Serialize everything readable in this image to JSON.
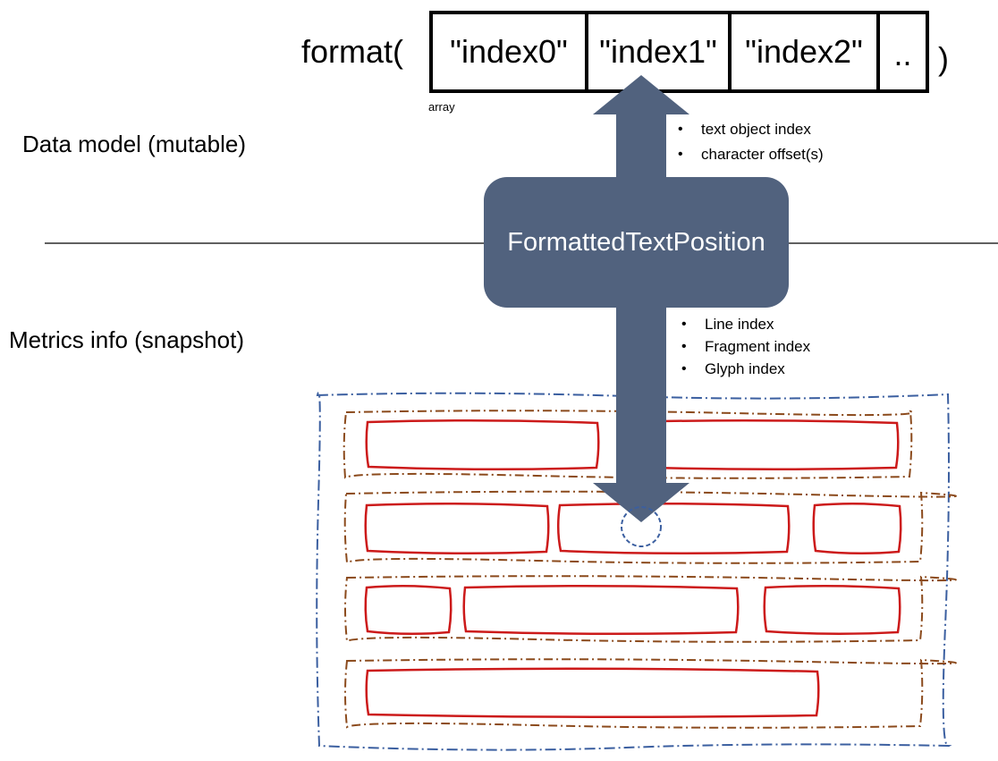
{
  "format_call": {
    "open": "format(",
    "close": ")",
    "cells": [
      "\"index0\"",
      "\"index1\"",
      "\"index2\"",
      ".."
    ],
    "array_caption": "array"
  },
  "data_model_label": "Data model (mutable)",
  "metrics_label": "Metrics info (snapshot)",
  "position_box_label": "FormattedTextPosition",
  "data_model_bullets": [
    "text object index",
    "character offset(s)"
  ],
  "metrics_bullets": [
    "Line index",
    "Fragment index",
    "Glyph index"
  ],
  "colors": {
    "arrow": "#51627e",
    "frame_outer": "#3b5fa0",
    "line_dashed": "#8b4a1c",
    "fragment": "#cc1a1a",
    "divider": "#000000"
  },
  "icons": {
    "bullet": "bullet-dot-icon"
  }
}
